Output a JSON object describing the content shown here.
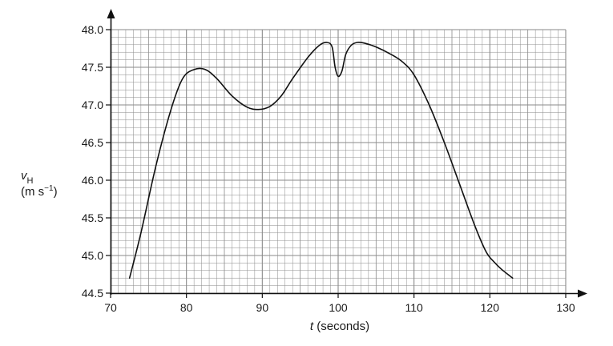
{
  "chart_data": {
    "type": "line",
    "xlabel": {
      "symbol": "t",
      "unit": "(seconds)"
    },
    "ylabel": {
      "symbol": "v",
      "subscript": "H",
      "unit_pre": "(m s",
      "unit_exp": "−1",
      "unit_post": ")"
    },
    "xlim": [
      70,
      130
    ],
    "ylim": [
      44.5,
      48.0
    ],
    "x_ticks": [
      "70",
      "80",
      "90",
      "100",
      "110",
      "120",
      "130"
    ],
    "y_ticks": [
      "44.5",
      "45.0",
      "45.5",
      "46.0",
      "46.5",
      "47.0",
      "47.5",
      "48.0"
    ],
    "grid": true,
    "colors": {
      "grid": "#8a8a8a",
      "line": "#111111"
    },
    "series": [
      {
        "x": [
          72.5,
          74,
          76,
          78,
          79.5,
          81,
          82.5,
          84,
          86,
          88,
          89.5,
          91,
          92.5,
          94,
          96,
          97.5,
          98.5,
          99.2,
          99.6,
          100,
          100.5,
          101,
          101.7,
          102.5,
          103.5,
          105,
          107,
          108.5,
          110,
          112,
          114,
          116,
          118,
          119.5,
          120.5,
          121.5,
          123
        ],
        "y": [
          44.7,
          45.3,
          46.2,
          46.95,
          47.35,
          47.47,
          47.47,
          47.35,
          47.12,
          46.97,
          46.94,
          46.98,
          47.12,
          47.35,
          47.63,
          47.79,
          47.83,
          47.77,
          47.5,
          47.38,
          47.45,
          47.67,
          47.79,
          47.83,
          47.82,
          47.77,
          47.67,
          47.57,
          47.4,
          47.0,
          46.5,
          45.95,
          45.4,
          45.05,
          44.92,
          44.82,
          44.7
        ]
      }
    ]
  }
}
